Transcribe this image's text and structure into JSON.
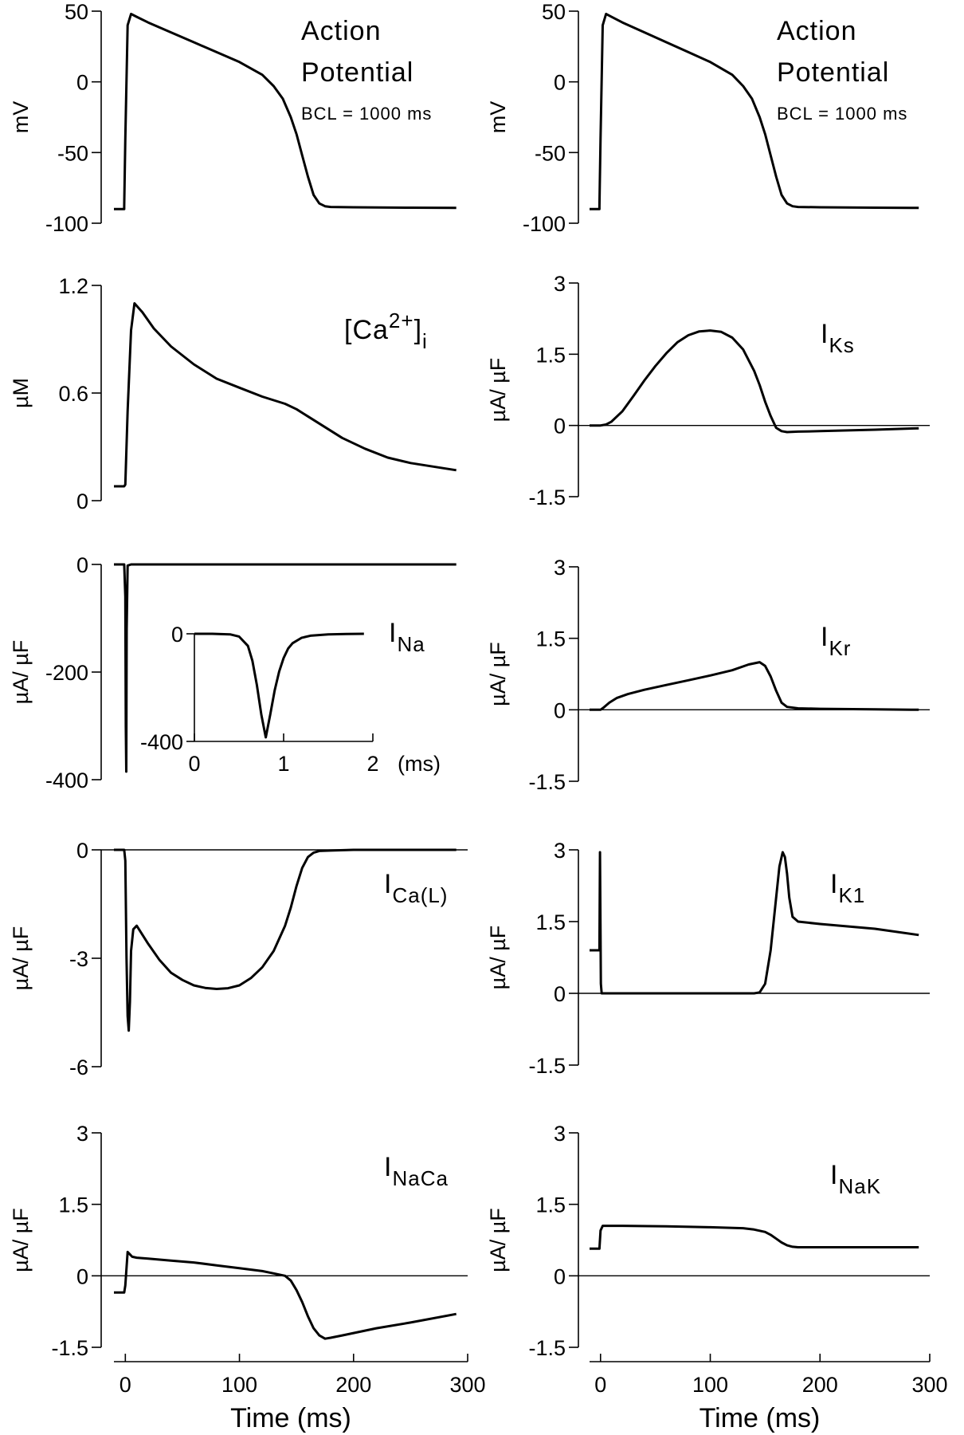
{
  "chart_data": [
    {
      "type": "line",
      "panel": "left-1",
      "annotation_lines": [
        "Action",
        "Potential"
      ],
      "annotation_note": "BCL = 1000 ms",
      "ylabel": "mV",
      "ylim": [
        -100,
        50
      ],
      "yticks": [
        "50",
        "0",
        "-50",
        "-100"
      ],
      "xlim": [
        -10,
        300
      ],
      "series": [
        {
          "x": [
            -10,
            -1,
            -1,
            0,
            2,
            5,
            10,
            20,
            40,
            60,
            80,
            100,
            120,
            130,
            138,
            145,
            150,
            155,
            160,
            165,
            170,
            175,
            180,
            200,
            250,
            290
          ],
          "y": [
            -90,
            -90,
            -88,
            -40,
            40,
            48,
            46,
            42,
            35,
            28,
            21,
            14,
            5,
            -3,
            -12,
            -25,
            -37,
            -52,
            -67,
            -80,
            -86,
            -88,
            -88.5,
            -88.7,
            -89,
            -89.2
          ]
        }
      ]
    },
    {
      "type": "line",
      "panel": "right-1",
      "annotation_lines": [
        "Action",
        "Potential"
      ],
      "annotation_note": "BCL = 1000 ms",
      "ylabel": "mV",
      "ylim": [
        -100,
        50
      ],
      "yticks": [
        "50",
        "0",
        "-50",
        "-100"
      ],
      "xlim": [
        -10,
        300
      ],
      "series": [
        {
          "x": [
            -10,
            -1,
            -1,
            0,
            2,
            5,
            10,
            20,
            40,
            60,
            80,
            100,
            120,
            130,
            138,
            145,
            150,
            155,
            160,
            165,
            170,
            175,
            180,
            200,
            250,
            290
          ],
          "y": [
            -90,
            -90,
            -88,
            -40,
            40,
            48,
            46,
            42,
            35,
            28,
            21,
            14,
            5,
            -3,
            -12,
            -25,
            -37,
            -52,
            -67,
            -80,
            -86,
            -88,
            -88.5,
            -88.7,
            -89,
            -89.2
          ]
        }
      ]
    },
    {
      "type": "line",
      "panel": "left-2",
      "label_main": "[Ca",
      "label_sup": "2+",
      "label_end": "]",
      "label_sub": "i",
      "ylabel": "µM",
      "ylim": [
        0,
        1.2
      ],
      "yticks": [
        "1.2",
        "0.6",
        "0"
      ],
      "xlim": [
        -10,
        300
      ],
      "series": [
        {
          "x": [
            -10,
            -1,
            0,
            2,
            5,
            8,
            15,
            25,
            40,
            60,
            80,
            100,
            120,
            140,
            150,
            160,
            175,
            190,
            210,
            230,
            250,
            270,
            290
          ],
          "y": [
            0.08,
            0.08,
            0.09,
            0.5,
            0.95,
            1.1,
            1.05,
            0.96,
            0.86,
            0.76,
            0.68,
            0.63,
            0.58,
            0.54,
            0.51,
            0.47,
            0.41,
            0.35,
            0.29,
            0.24,
            0.21,
            0.19,
            0.17
          ]
        }
      ]
    },
    {
      "type": "line",
      "panel": "right-2",
      "label_main": "I",
      "label_sub": "Ks",
      "ylabel": "µA/ µF",
      "ylim": [
        -1.5,
        3
      ],
      "yticks": [
        "3",
        "1.5",
        "0",
        "-1.5"
      ],
      "xlim": [
        -10,
        300
      ],
      "zero_line": true,
      "series": [
        {
          "x": [
            -10,
            0,
            5,
            10,
            20,
            30,
            40,
            50,
            60,
            70,
            80,
            90,
            100,
            110,
            120,
            130,
            140,
            145,
            150,
            155,
            160,
            165,
            170,
            180,
            200,
            250,
            290
          ],
          "y": [
            0,
            0,
            0.02,
            0.08,
            0.3,
            0.62,
            0.95,
            1.25,
            1.52,
            1.75,
            1.9,
            1.98,
            2.0,
            1.97,
            1.85,
            1.6,
            1.15,
            0.85,
            0.5,
            0.2,
            -0.05,
            -0.12,
            -0.14,
            -0.13,
            -0.12,
            -0.09,
            -0.06
          ]
        }
      ]
    },
    {
      "type": "line",
      "panel": "left-3",
      "label_main": "I",
      "label_sub": "Na",
      "ylabel": "µA/ µF",
      "ylim": [
        -400,
        0
      ],
      "yticks": [
        "0",
        "-200",
        "-400"
      ],
      "xlim": [
        -10,
        300
      ],
      "series": [
        {
          "x": [
            -10,
            -1,
            0,
            0.4,
            0.8,
            1.2,
            2,
            5,
            290
          ],
          "y": [
            0,
            0,
            -60,
            -300,
            -385,
            -120,
            -2,
            0,
            0
          ]
        }
      ],
      "inset": {
        "xlim": [
          0,
          2
        ],
        "ylim": [
          -400,
          0
        ],
        "xticks": [
          "0",
          "1",
          "2"
        ],
        "yticks": [
          "0",
          "-400"
        ],
        "x_unit": "(ms)",
        "series": [
          {
            "x": [
              0,
              0.2,
              0.4,
              0.5,
              0.6,
              0.65,
              0.7,
              0.75,
              0.8,
              0.85,
              0.9,
              0.95,
              1.0,
              1.05,
              1.1,
              1.2,
              1.3,
              1.5,
              1.7,
              1.9
            ],
            "y": [
              0,
              0,
              -2,
              -10,
              -45,
              -100,
              -190,
              -300,
              -385,
              -300,
              -210,
              -140,
              -90,
              -55,
              -35,
              -15,
              -7,
              -2,
              -1,
              0
            ]
          }
        ]
      }
    },
    {
      "type": "line",
      "panel": "right-3",
      "label_main": "I",
      "label_sub": "Kr",
      "ylabel": "µA/ µF",
      "ylim": [
        -1.5,
        3
      ],
      "yticks": [
        "3",
        "1.5",
        "0",
        "-1.5"
      ],
      "xlim": [
        -10,
        300
      ],
      "zero_line": true,
      "series": [
        {
          "x": [
            -10,
            0,
            3,
            8,
            15,
            25,
            40,
            60,
            80,
            100,
            120,
            135,
            145,
            150,
            155,
            160,
            165,
            170,
            180,
            200,
            250,
            290
          ],
          "y": [
            0,
            0,
            0.05,
            0.15,
            0.25,
            0.33,
            0.42,
            0.52,
            0.62,
            0.72,
            0.83,
            0.95,
            1.0,
            0.92,
            0.7,
            0.4,
            0.15,
            0.06,
            0.03,
            0.02,
            0.01,
            0
          ]
        }
      ]
    },
    {
      "type": "line",
      "panel": "left-4",
      "label_main": "I",
      "label_sub": "Ca(L)",
      "ylabel": "µA/ µF",
      "ylim": [
        -6,
        0
      ],
      "yticks": [
        "0",
        "-3",
        "-6"
      ],
      "xlim": [
        -10,
        300
      ],
      "zero_line": true,
      "series": [
        {
          "x": [
            -10,
            -1,
            0,
            1,
            2,
            3,
            4,
            5,
            7,
            10,
            20,
            30,
            40,
            50,
            60,
            70,
            80,
            90,
            100,
            110,
            120,
            130,
            140,
            145,
            150,
            155,
            160,
            165,
            170,
            180,
            200,
            250,
            290
          ],
          "y": [
            0,
            0,
            -0.3,
            -3.0,
            -4.6,
            -5.0,
            -4.2,
            -2.8,
            -2.2,
            -2.1,
            -2.6,
            -3.05,
            -3.4,
            -3.6,
            -3.75,
            -3.82,
            -3.85,
            -3.83,
            -3.75,
            -3.55,
            -3.25,
            -2.8,
            -2.1,
            -1.6,
            -1.0,
            -0.5,
            -0.2,
            -0.08,
            -0.03,
            -0.02,
            0,
            0,
            0
          ]
        }
      ]
    },
    {
      "type": "line",
      "panel": "right-4",
      "label_main": "I",
      "label_sub": "K1",
      "ylabel": "µA/ µF",
      "ylim": [
        -1.5,
        3
      ],
      "yticks": [
        "3",
        "1.5",
        "0",
        "-1.5"
      ],
      "xlim": [
        -10,
        300
      ],
      "zero_line": true,
      "series": [
        {
          "x": [
            -10,
            -1,
            -0.5,
            0.3,
            1,
            2,
            140,
            145,
            150,
            155,
            160,
            163,
            166,
            168,
            170,
            172,
            175,
            180,
            200,
            250,
            290
          ],
          "y": [
            0.9,
            0.9,
            2.95,
            0.2,
            0,
            0,
            0,
            0.02,
            0.2,
            0.9,
            2.0,
            2.65,
            2.95,
            2.85,
            2.5,
            2.0,
            1.6,
            1.5,
            1.45,
            1.35,
            1.22
          ]
        }
      ]
    },
    {
      "type": "line",
      "panel": "left-5",
      "label_main": "I",
      "label_sub": "NaCa",
      "ylabel": "µA/ µF",
      "ylim": [
        -1.5,
        3
      ],
      "yticks": [
        "3",
        "1.5",
        "0",
        "-1.5"
      ],
      "xlabel": "Time (ms)",
      "xticks": [
        "0",
        "100",
        "200",
        "300"
      ],
      "xlim": [
        -10,
        300
      ],
      "zero_line": true,
      "series": [
        {
          "x": [
            -10,
            -1,
            0,
            2,
            4,
            6,
            10,
            20,
            40,
            60,
            80,
            100,
            120,
            130,
            140,
            145,
            150,
            155,
            160,
            165,
            170,
            175,
            180,
            190,
            200,
            220,
            250,
            290
          ],
          "y": [
            -0.35,
            -0.35,
            -0.2,
            0.5,
            0.45,
            0.4,
            0.38,
            0.36,
            0.32,
            0.28,
            0.22,
            0.16,
            0.1,
            0.05,
            0,
            -0.1,
            -0.3,
            -0.55,
            -0.85,
            -1.1,
            -1.25,
            -1.32,
            -1.3,
            -1.25,
            -1.2,
            -1.1,
            -0.98,
            -0.8
          ]
        }
      ]
    },
    {
      "type": "line",
      "panel": "right-5",
      "label_main": "I",
      "label_sub": "NaK",
      "ylabel": "µA/ µF",
      "ylim": [
        -1.5,
        3
      ],
      "yticks": [
        "3",
        "1.5",
        "0",
        "-1.5"
      ],
      "xlabel": "Time (ms)",
      "xticks": [
        "0",
        "100",
        "200",
        "300"
      ],
      "xlim": [
        -10,
        300
      ],
      "zero_line": true,
      "series": [
        {
          "x": [
            -10,
            -1,
            0,
            2,
            20,
            60,
            100,
            130,
            140,
            150,
            155,
            160,
            165,
            170,
            175,
            180,
            200,
            250,
            290
          ],
          "y": [
            0.57,
            0.57,
            0.95,
            1.05,
            1.05,
            1.04,
            1.02,
            1.0,
            0.97,
            0.92,
            0.86,
            0.78,
            0.7,
            0.64,
            0.61,
            0.6,
            0.6,
            0.6,
            0.6
          ]
        }
      ]
    }
  ]
}
